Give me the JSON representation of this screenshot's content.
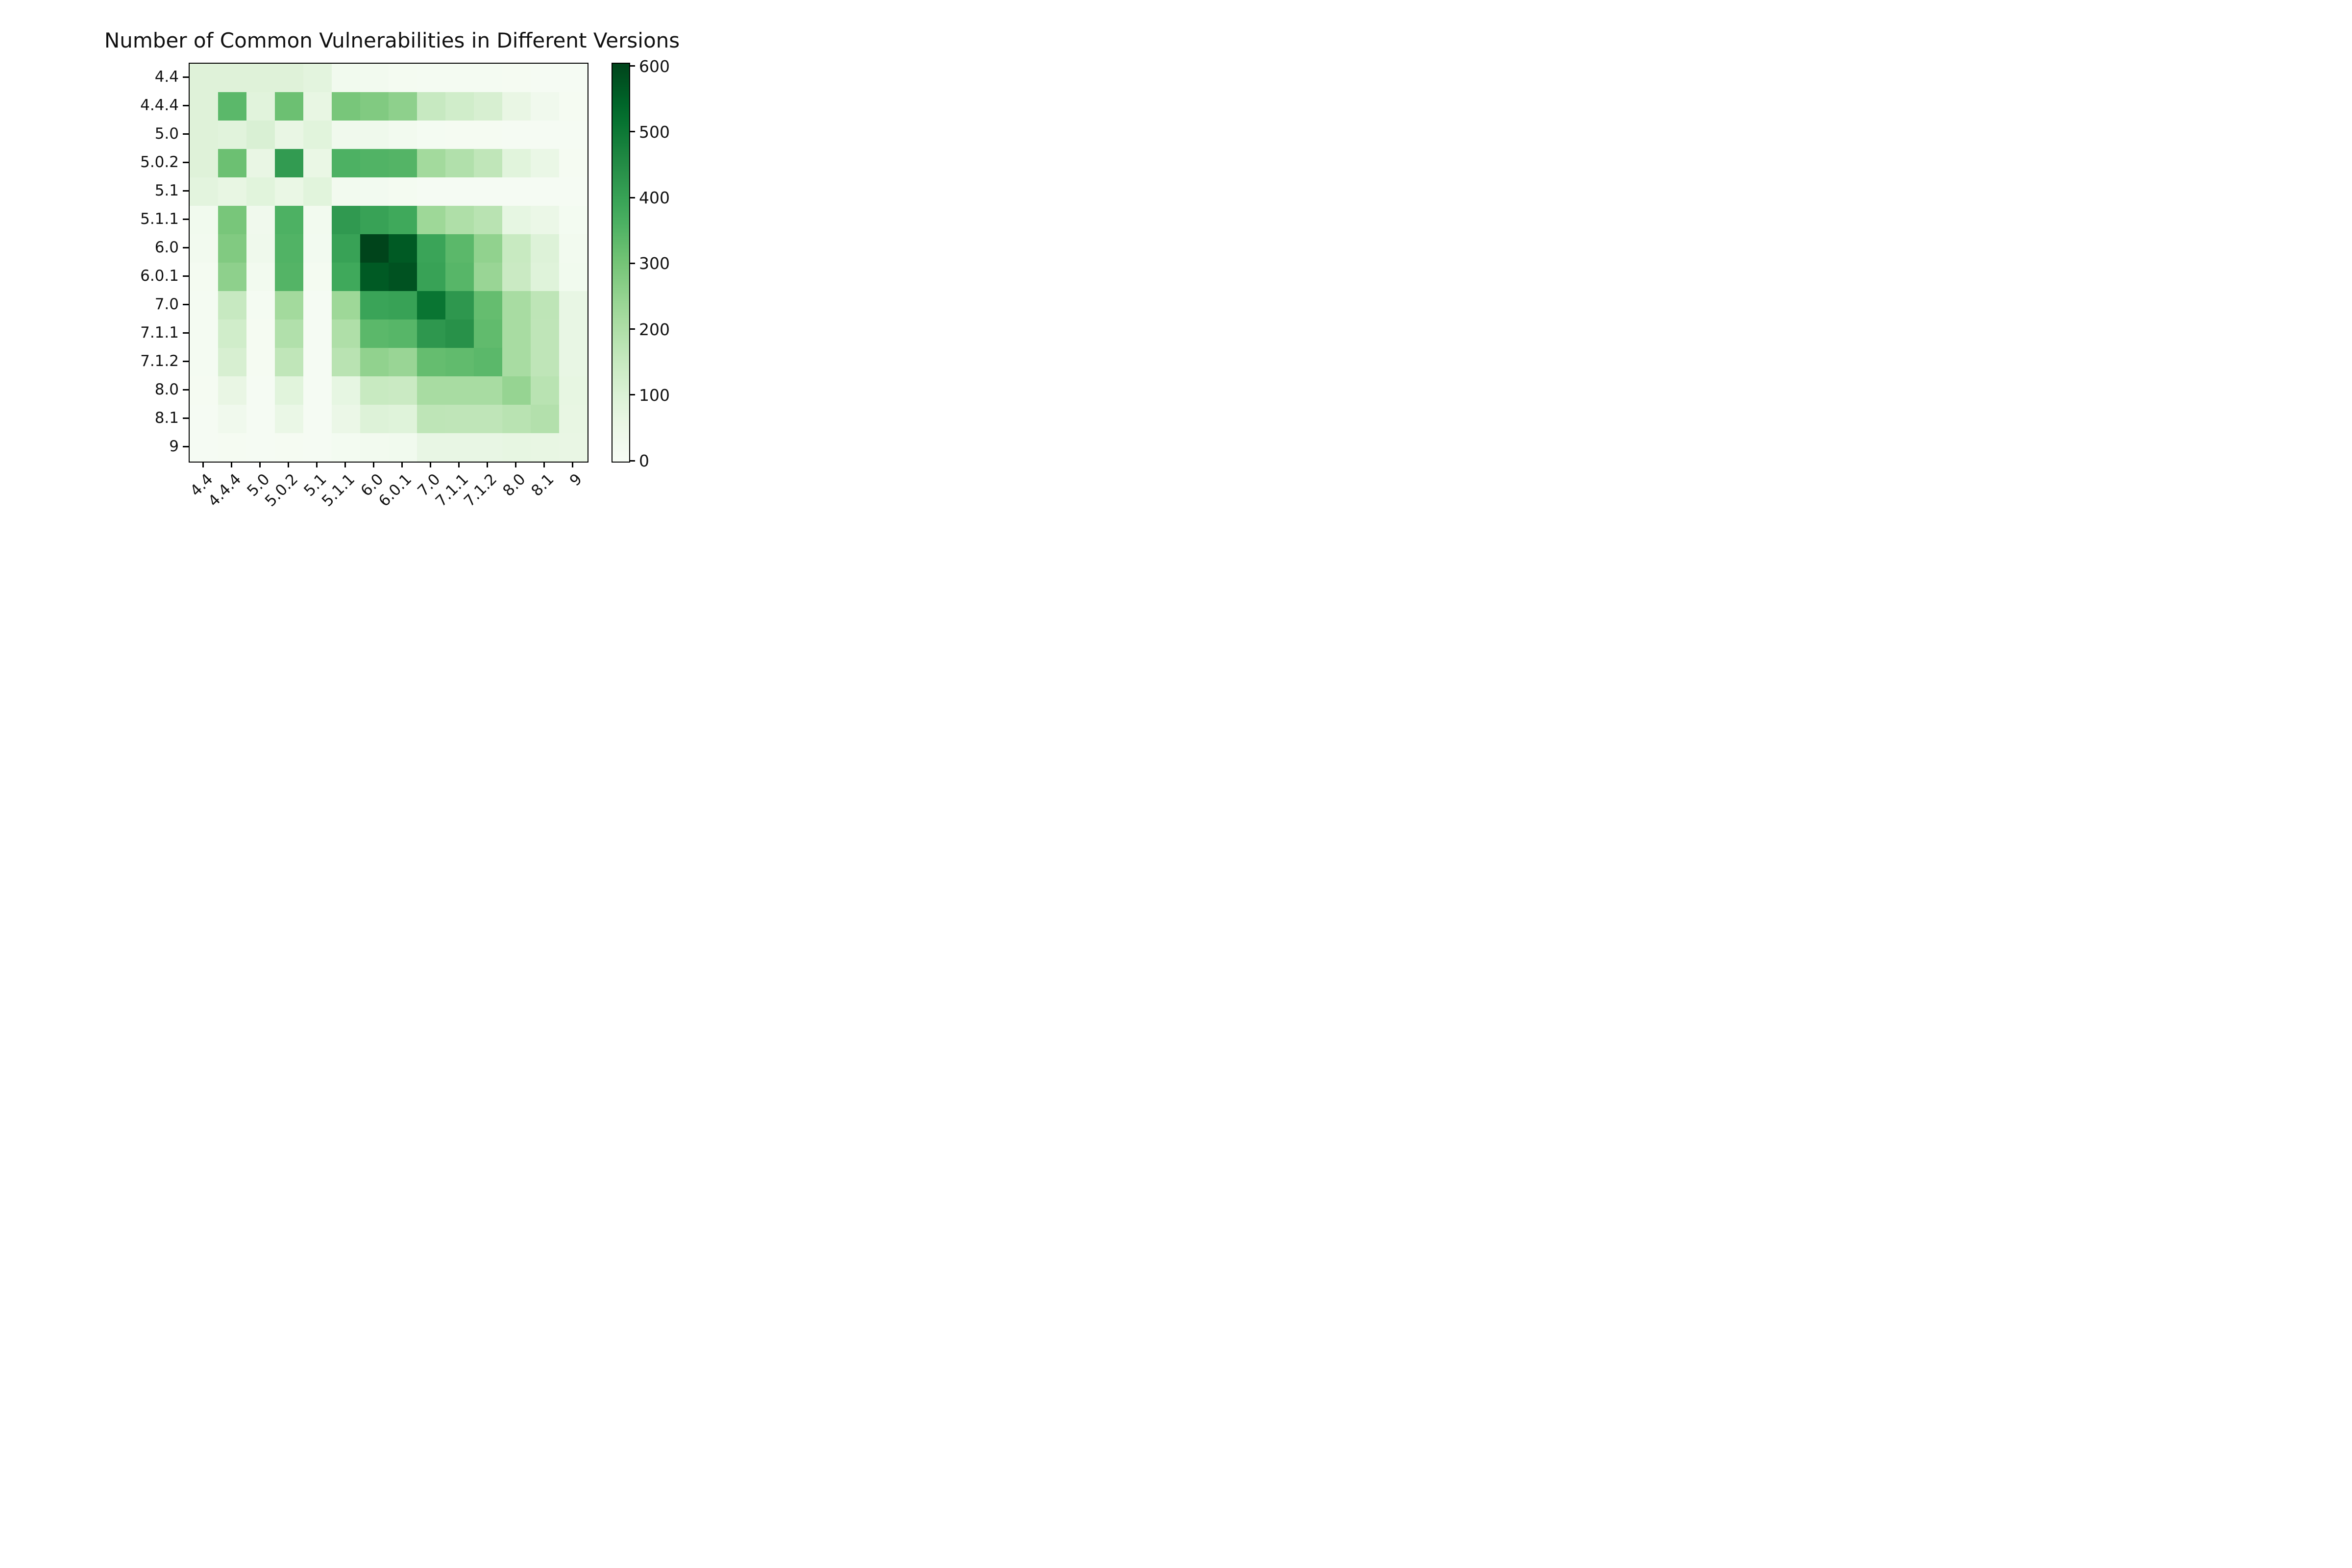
{
  "title": "Number of Common Vulnerabilities in Different Versions",
  "chart_data": {
    "type": "heatmap",
    "title": "Number of Common Vulnerabilities in Different Versions",
    "categories": [
      "4.4",
      "4.4.4",
      "5.0",
      "5.0.2",
      "5.1",
      "5.1.1",
      "6.0",
      "6.0.1",
      "7.0",
      "7.1.1",
      "7.1.2",
      "8.0",
      "8.1",
      "9"
    ],
    "x_tick_labels": [
      "4.4",
      "4.4.4",
      "5.0",
      "5.0.2",
      "5.1",
      "5.1.1",
      "6.0",
      "6.0.1",
      "7.0",
      "7.1.1",
      "7.1.2",
      "8.0",
      "8.1",
      "9"
    ],
    "y_tick_labels": [
      "4.4",
      "4.4.4",
      "5.0",
      "5.0.2",
      "5.1",
      "5.1.1",
      "6.0",
      "6.0.1",
      "7.0",
      "7.1.1",
      "7.1.2",
      "8.0",
      "8.1",
      "9"
    ],
    "matrix": [
      [
        92,
        92,
        92,
        92,
        80,
        25,
        20,
        14,
        12,
        11,
        11,
        10,
        9,
        8
      ],
      [
        92,
        340,
        86,
        315,
        64,
        295,
        280,
        258,
        150,
        128,
        112,
        60,
        30,
        10
      ],
      [
        92,
        86,
        105,
        60,
        85,
        30,
        34,
        22,
        12,
        10,
        10,
        9,
        8,
        8
      ],
      [
        92,
        315,
        60,
        415,
        56,
        360,
        355,
        350,
        222,
        195,
        165,
        85,
        55,
        10
      ],
      [
        80,
        64,
        85,
        56,
        85,
        20,
        19,
        14,
        9,
        8,
        8,
        8,
        8,
        8
      ],
      [
        25,
        295,
        30,
        360,
        20,
        420,
        400,
        383,
        232,
        200,
        180,
        70,
        50,
        15
      ],
      [
        20,
        280,
        34,
        355,
        19,
        400,
        605,
        565,
        395,
        340,
        253,
        148,
        95,
        20
      ],
      [
        14,
        258,
        22,
        350,
        14,
        383,
        565,
        580,
        400,
        345,
        240,
        143,
        90,
        25
      ],
      [
        12,
        150,
        12,
        222,
        9,
        232,
        395,
        400,
        510,
        425,
        325,
        213,
        170,
        62
      ],
      [
        11,
        128,
        10,
        195,
        8,
        200,
        340,
        345,
        425,
        440,
        330,
        213,
        168,
        62
      ],
      [
        11,
        112,
        10,
        165,
        8,
        180,
        253,
        240,
        325,
        330,
        340,
        213,
        168,
        62
      ],
      [
        10,
        60,
        9,
        85,
        8,
        70,
        148,
        143,
        213,
        213,
        213,
        245,
        180,
        68
      ],
      [
        9,
        30,
        8,
        55,
        8,
        50,
        95,
        90,
        170,
        168,
        168,
        180,
        192,
        64
      ],
      [
        8,
        10,
        8,
        10,
        8,
        15,
        20,
        25,
        62,
        62,
        62,
        68,
        64,
        60
      ]
    ],
    "vmin": 0,
    "vmax": 605,
    "colormap": "Greens",
    "colormap_anchors": [
      [
        0.0,
        [
          247,
          252,
          245
        ]
      ],
      [
        0.125,
        [
          229,
          245,
          224
        ]
      ],
      [
        0.25,
        [
          199,
          233,
          192
        ]
      ],
      [
        0.375,
        [
          161,
          217,
          155
        ]
      ],
      [
        0.5,
        [
          116,
          196,
          118
        ]
      ],
      [
        0.625,
        [
          65,
          171,
          93
        ]
      ],
      [
        0.75,
        [
          35,
          139,
          69
        ]
      ],
      [
        0.875,
        [
          0,
          109,
          44
        ]
      ],
      [
        1.0,
        [
          0,
          68,
          27
        ]
      ]
    ],
    "colorbar_tick_labels": [
      "0",
      "100",
      "200",
      "300",
      "400",
      "500",
      "600"
    ],
    "colorbar_tick_values": [
      0,
      100,
      200,
      300,
      400,
      500,
      600
    ],
    "legend_position": "right-colorbar",
    "grid": false
  },
  "colors": {
    "background": "#ffffff",
    "axis": "#000000",
    "text": "#111111",
    "cmap_low": "#f7fcf5",
    "cmap_high": "#00441b"
  }
}
